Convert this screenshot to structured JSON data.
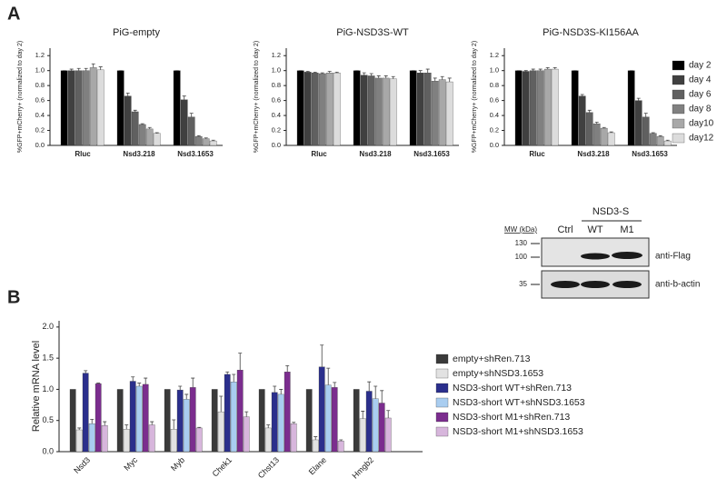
{
  "panels": [
    "A",
    "B"
  ],
  "chart_data": [
    {
      "type": "bar",
      "title": "PiG-empty",
      "ylabel": "%GFP+mCherry+ (normalized to day 2)",
      "categories": [
        "Rluc",
        "Nsd3.218",
        "Nsd3.1653"
      ],
      "ylim": [
        0,
        1.3
      ],
      "yticks": [
        {
          "value": 0,
          "label": "0.0"
        },
        0.2,
        0.4,
        0.6,
        0.8,
        {
          "value": 1,
          "label": "1.0"
        },
        1.2
      ],
      "legend": false,
      "series": [
        {
          "color": "#000000",
          "values": [
            1,
            1,
            1
          ],
          "errors": [
            0,
            0,
            0
          ]
        },
        {
          "color": "#404040",
          "values": [
            1,
            0.66,
            0.61
          ],
          "errors": [
            0.02,
            0.04,
            0.05
          ]
        },
        {
          "color": "#606060",
          "values": [
            1,
            0.45,
            0.38
          ],
          "errors": [
            0.03,
            0.02,
            0.05
          ]
        },
        {
          "color": "#808080",
          "values": [
            1,
            0.28,
            0.12
          ],
          "errors": [
            0.03,
            0.01,
            0.01
          ]
        },
        {
          "color": "#a8a8a8",
          "values": [
            1.04,
            0.22,
            0.09
          ],
          "errors": [
            0.05,
            0.02,
            0.01
          ]
        },
        {
          "color": "#dcdcdc",
          "values": [
            1.01,
            0.16,
            0.06
          ],
          "errors": [
            0.04,
            0.01,
            0.01
          ]
        }
      ]
    },
    {
      "type": "bar",
      "title": "PiG-NSD3S-WT",
      "ylabel": "%GFP+mCherry+ (normalized to day 2)",
      "categories": [
        "Rluc",
        "Nsd3.218",
        "Nsd3.1653"
      ],
      "ylim": [
        0,
        1.3
      ],
      "yticks": [
        {
          "value": 0,
          "label": "0.0"
        },
        0.2,
        0.4,
        0.6,
        0.8,
        {
          "value": 1,
          "label": "1.0"
        },
        1.2
      ],
      "legend": false,
      "series": [
        {
          "color": "#000000",
          "values": [
            1,
            1,
            1
          ],
          "errors": [
            0,
            0,
            0
          ]
        },
        {
          "color": "#404040",
          "values": [
            0.98,
            0.94,
            0.97
          ],
          "errors": [
            0.01,
            0.03,
            0.03
          ]
        },
        {
          "color": "#606060",
          "values": [
            0.97,
            0.93,
            0.97
          ],
          "errors": [
            0.01,
            0.03,
            0.05
          ]
        },
        {
          "color": "#808080",
          "values": [
            0.96,
            0.9,
            0.86
          ],
          "errors": [
            0.01,
            0.03,
            0.04
          ]
        },
        {
          "color": "#a8a8a8",
          "values": [
            0.97,
            0.9,
            0.88
          ],
          "errors": [
            0.02,
            0.03,
            0.04
          ]
        },
        {
          "color": "#dcdcdc",
          "values": [
            0.97,
            0.89,
            0.85
          ],
          "errors": [
            0.01,
            0.03,
            0.05
          ]
        }
      ]
    },
    {
      "type": "bar",
      "title": "PiG-NSD3S-KI156AA",
      "ylabel": "%GFP+mCherry+ (normalized to day 2)",
      "categories": [
        "Rluc",
        "Nsd3.218",
        "Nsd3.1653"
      ],
      "ylim": [
        0,
        1.3
      ],
      "yticks": [
        {
          "value": 0,
          "label": "0.0"
        },
        0.2,
        0.4,
        0.6,
        0.8,
        {
          "value": 1,
          "label": "1.0"
        },
        1.2
      ],
      "legend": true,
      "series": [
        {
          "name": "day 2",
          "color": "#000000",
          "values": [
            1,
            1,
            1
          ],
          "errors": [
            0,
            0,
            0
          ]
        },
        {
          "name": "day 4",
          "color": "#404040",
          "values": [
            0.99,
            0.66,
            0.6
          ],
          "errors": [
            0.01,
            0.02,
            0.03
          ]
        },
        {
          "name": "day 6",
          "color": "#606060",
          "values": [
            1,
            0.44,
            0.38
          ],
          "errors": [
            0.02,
            0.03,
            0.05
          ]
        },
        {
          "name": "day 8",
          "color": "#808080",
          "values": [
            1,
            0.29,
            0.16
          ],
          "errors": [
            0.02,
            0.02,
            0.01
          ]
        },
        {
          "name": "day10",
          "color": "#a8a8a8",
          "values": [
            1.02,
            0.23,
            0.12
          ],
          "errors": [
            0.02,
            0.01,
            0.01
          ]
        },
        {
          "name": "day12",
          "color": "#dcdcdc",
          "values": [
            1.02,
            0.17,
            0.06
          ],
          "errors": [
            0.02,
            0.01,
            0.01
          ]
        }
      ]
    },
    {
      "type": "bar",
      "ylabel": "Relative mRNA level",
      "categories": [
        "Nsd3",
        "Myc",
        "Myb",
        "Chek1",
        "Chst13",
        "Elane",
        "Hmgb2"
      ],
      "ylim": [
        0,
        2.1
      ],
      "yticks": [
        {
          "value": 0,
          "label": "0.0"
        },
        0.5,
        {
          "value": 1,
          "label": "1.0"
        },
        1.5,
        {
          "value": 2,
          "label": "2.0"
        }
      ],
      "legend": true,
      "series": [
        {
          "name": "empty+shRen.713",
          "color": "#3a3a3a",
          "values": [
            1,
            1,
            1,
            1,
            1,
            1,
            1
          ]
        },
        {
          "name": "empty+shNSD3.1653",
          "color": "#e2e2e2",
          "values": [
            0.35,
            0.36,
            0.36,
            0.64,
            0.38,
            0.19,
            0.53
          ],
          "errors": [
            0.03,
            0.07,
            0.15,
            0.25,
            0.05,
            0.05,
            0.12
          ]
        },
        {
          "name": "NSD3-short WT+shRen.713",
          "color": "#2b2f8c",
          "values": [
            1.26,
            1.13,
            0.99,
            1.24,
            0.95,
            1.36,
            0.97
          ],
          "errors": [
            0.04,
            0.07,
            0.06,
            0.04,
            0.1,
            0.35,
            0.15
          ]
        },
        {
          "name": "NSD3-short WT+shNSD3.1653",
          "color": "#a9cdf0",
          "values": [
            0.45,
            1.05,
            0.84,
            1.12,
            0.92,
            1.07,
            0.85
          ],
          "errors": [
            0.07,
            0.05,
            0.08,
            0.12,
            0.08,
            0.27,
            0.2
          ]
        },
        {
          "name": "NSD3-short M1+shRen.713",
          "color": "#7b2d8e",
          "values": [
            1.09,
            1.08,
            1.03,
            1.31,
            1.28,
            1.03,
            0.78
          ],
          "errors": [
            0.01,
            0.1,
            0.15,
            0.27,
            0.1,
            0.08,
            0.2
          ]
        },
        {
          "name": "NSD3-short M1+shNSD3.1653",
          "color": "#d7b6dc",
          "values": [
            0.42,
            0.43,
            0.38,
            0.56,
            0.45,
            0.17,
            0.54
          ],
          "errors": [
            0.06,
            0.05,
            0.01,
            0.08,
            0.02,
            0.02,
            0.12
          ]
        }
      ]
    }
  ],
  "blot": {
    "group": "NSD3-S",
    "mw_header": "MW (kDa)",
    "lanes": [
      "Ctrl",
      "WT",
      "M1"
    ],
    "markers": [
      "130",
      "100",
      "35"
    ],
    "antibodies": [
      "anti-Flag",
      "anti-b-actin"
    ]
  }
}
